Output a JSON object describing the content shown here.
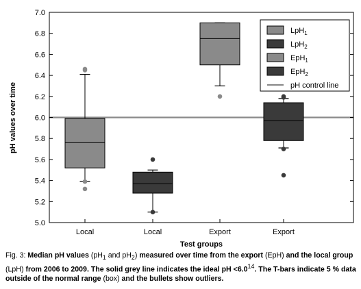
{
  "chart_data": {
    "type": "box",
    "xlabel": "Test groups",
    "ylabel": "pH values over time",
    "ylim": [
      5.0,
      7.0
    ],
    "yticks": [
      "5.0",
      "5.2",
      "5.4",
      "5.6",
      "5.8",
      "6.0",
      "6.2",
      "6.4",
      "6.6",
      "6.8",
      "7.0"
    ],
    "categories": [
      "Local",
      "Local",
      "Export",
      "Export"
    ],
    "series": [
      {
        "name": "LpH1",
        "color": "#8a8a8a",
        "category": 0,
        "whisker_low": 5.39,
        "q1": 5.52,
        "median": 5.76,
        "q3": 5.99,
        "whisker_high": 6.41,
        "outliers": [
          5.32,
          5.39,
          6.45,
          6.46
        ]
      },
      {
        "name": "LpH2",
        "color": "#3a3a3a",
        "category": 1,
        "whisker_low": 5.1,
        "q1": 5.28,
        "median": 5.37,
        "q3": 5.48,
        "whisker_high": 5.5,
        "outliers": [
          5.1,
          5.6
        ]
      },
      {
        "name": "EpH1",
        "color": "#8a8a8a",
        "category": 2,
        "whisker_low": 6.3,
        "q1": 6.5,
        "median": 6.75,
        "q3": 6.9,
        "whisker_high": 6.9,
        "outliers": [
          6.2
        ]
      },
      {
        "name": "EpH2",
        "color": "#3a3a3a",
        "category": 3,
        "whisker_low": 5.71,
        "q1": 5.78,
        "median": 5.97,
        "q3": 6.14,
        "whisker_high": 6.18,
        "outliers": [
          5.45,
          5.7,
          6.19,
          6.2
        ]
      }
    ],
    "reference_line": {
      "name": "pH control line",
      "value": 6.0,
      "color": "#8a8a8a"
    },
    "legend": {
      "placement": "top-right",
      "items": [
        {
          "base": "LpH",
          "sub": "1",
          "color": "#8a8a8a"
        },
        {
          "base": "LpH",
          "sub": "2",
          "color": "#3a3a3a"
        },
        {
          "base": "EpH",
          "sub": "1",
          "color": "#8a8a8a"
        },
        {
          "base": "EpH",
          "sub": "2",
          "color": "#3a3a3a"
        }
      ],
      "line_item": "pH control line"
    },
    "grid": false
  },
  "caption": {
    "prefix": "Fig. 3: ",
    "b1": "Median pH values",
    "t1": " (pH",
    "s1": "1",
    "t2": " and pH",
    "s2": "2",
    "t3": ") ",
    "b2": "measured over time from the export",
    "t4": " (EpH) ",
    "b3": "and the local group",
    "t5": " (LpH) ",
    "b4": "from 2006 to 2009. The solid grey line indicates the ideal pH <6.0",
    "sup": "14",
    "b5": ". The T-bars indicate 5 % data outside of the normal range",
    "t6": " (box) ",
    "b6": "and the bullets show outliers."
  }
}
